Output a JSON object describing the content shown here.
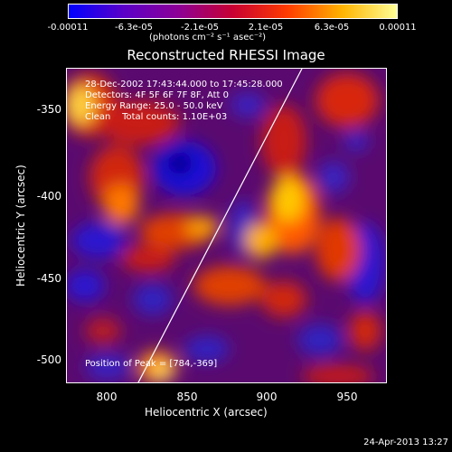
{
  "colorbar": {
    "ticks": [
      "-0.00011",
      "-6.3e-05",
      "-2.1e-05",
      "2.1e-05",
      "6.3e-05",
      "0.00011"
    ],
    "units": "(photons cm⁻² s⁻¹ asec⁻²)",
    "colors": [
      "#0000ff",
      "#5a00c8",
      "#8c0096",
      "#c80032",
      "#ff3c00",
      "#ffb400",
      "#ffff96"
    ]
  },
  "title": "Reconstructed RHESSI Image",
  "info": {
    "time": "28-Dec-2002 17:43:44.000 to 17:45:28.000",
    "detectors": "Detectors: 4F 5F 6F 7F 8F, Att 0",
    "energy": "Energy Range: 25.0 - 50.0 keV",
    "clean": "Clean    Total counts: 1.10E+03"
  },
  "peak": "Position of Peak = [784,-369]",
  "axes": {
    "xlabel": "Heliocentric X (arcsec)",
    "ylabel": "Heliocentric Y (arcsec)",
    "xticks": [
      "800",
      "850",
      "900",
      "950"
    ],
    "yticks": [
      "-350",
      "-400",
      "-450",
      "-500"
    ]
  },
  "timestamp": "24-Apr-2013 13:27"
}
